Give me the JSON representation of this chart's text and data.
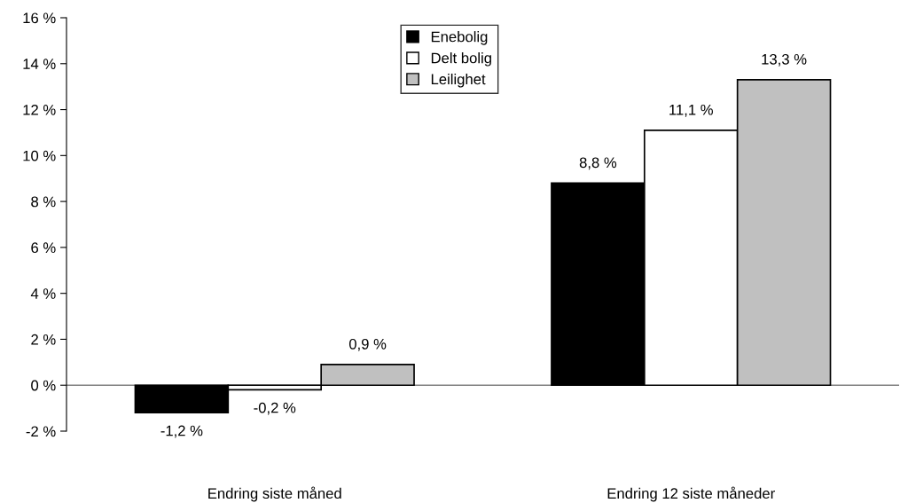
{
  "chart_data": {
    "type": "bar",
    "categories": [
      "Endring siste måned",
      "Endring 12 siste måneder"
    ],
    "series": [
      {
        "name": "Enebolig",
        "color": "#000000",
        "values": [
          -1.2,
          8.8
        ],
        "value_labels": [
          "-1,2 %",
          "8,8 %"
        ]
      },
      {
        "name": "Delt bolig",
        "color": "#ffffff",
        "values": [
          -0.2,
          11.1
        ],
        "value_labels": [
          "-0,2 %",
          "11,1 %"
        ]
      },
      {
        "name": "Leilighet",
        "color": "#c0c0c0",
        "values": [
          0.9,
          13.3
        ],
        "value_labels": [
          "0,9 %",
          "13,3 %"
        ]
      }
    ],
    "ylim": [
      -2,
      16
    ],
    "yticks": [
      {
        "value": -2,
        "label": "-2 %"
      },
      {
        "value": 0,
        "label": "0 %"
      },
      {
        "value": 2,
        "label": "2 %"
      },
      {
        "value": 4,
        "label": "4 %"
      },
      {
        "value": 6,
        "label": "6 %"
      },
      {
        "value": 8,
        "label": "8 %"
      },
      {
        "value": 10,
        "label": "10 %"
      },
      {
        "value": 12,
        "label": "12 %"
      },
      {
        "value": 14,
        "label": "14 %"
      },
      {
        "value": 16,
        "label": "16 %"
      }
    ],
    "ref_lines": [
      {
        "axis": "y",
        "value": 0,
        "color": "#808080"
      }
    ],
    "grid": false,
    "legend": "top"
  }
}
